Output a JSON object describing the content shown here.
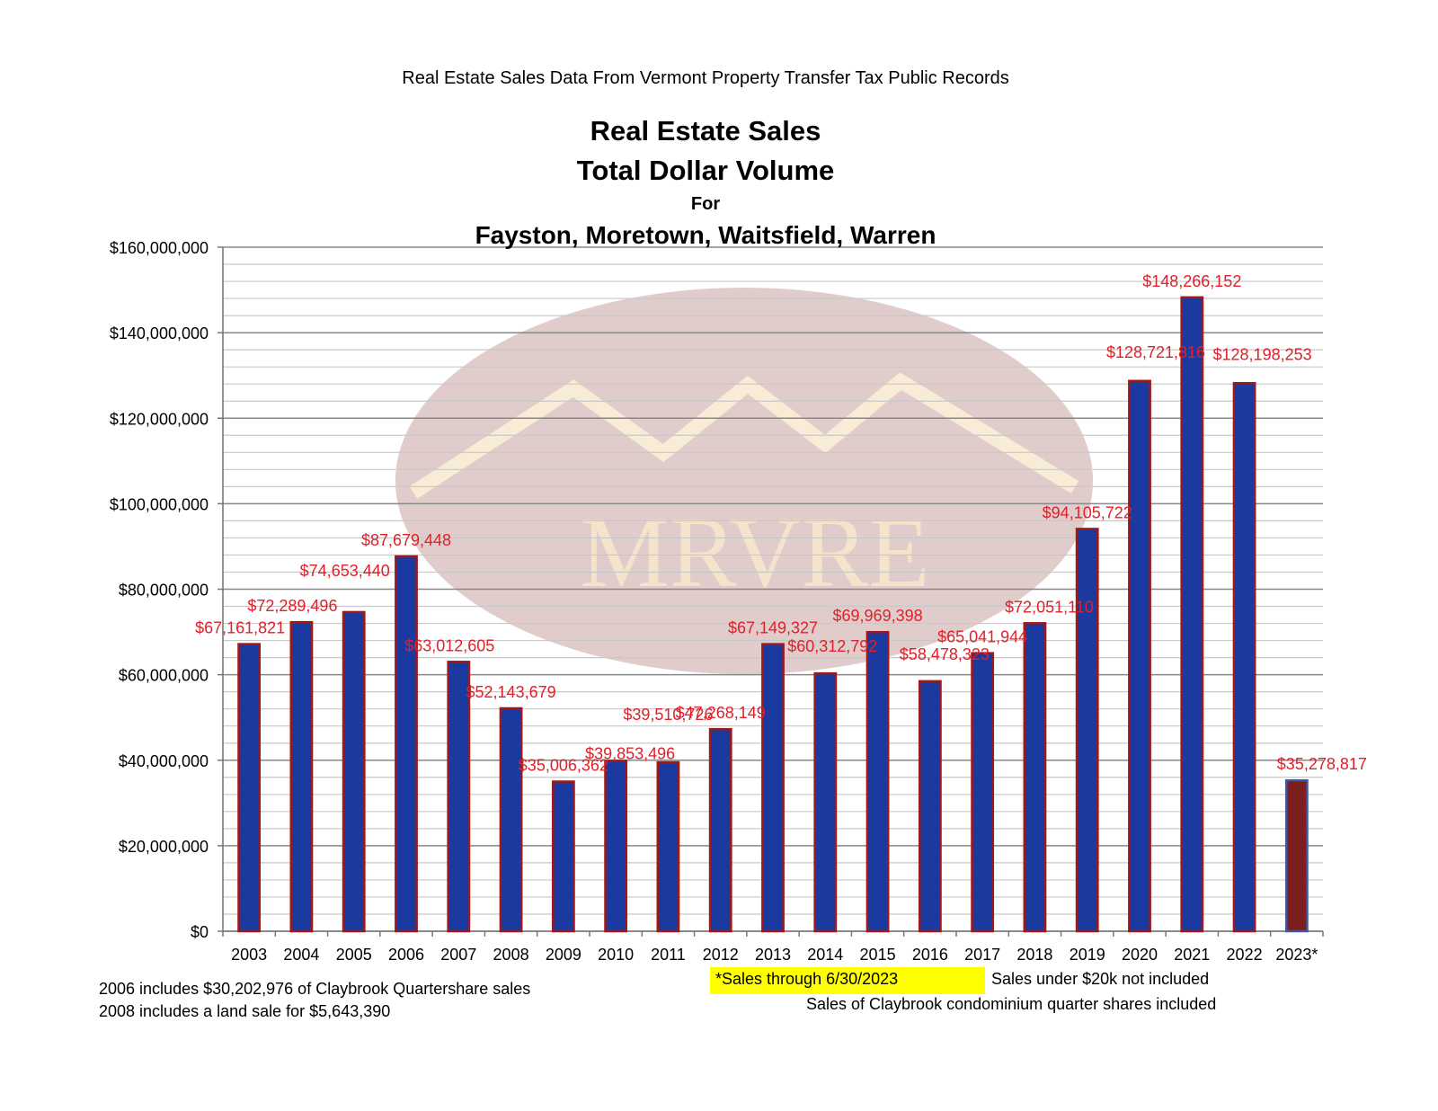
{
  "header": {
    "source_line": "Real Estate Sales Data From Vermont Property Transfer Tax Public Records",
    "title_line1": "Real Estate Sales",
    "title_line2": "Total Dollar Volume",
    "title_line3": "For",
    "title_line4": "Fayston, Moretown, Waitsfield, Warren"
  },
  "watermark": {
    "text": "MRVRE"
  },
  "colors": {
    "bar_fill": "#1a3aa0",
    "bar_border": "#a01818",
    "bar_partial_fill": "#7a1e1e",
    "bar_partial_border": "#3a5aa8",
    "label_color": "#e0202a",
    "grid_major": "#888888",
    "grid_minor": "#c8c8c8",
    "highlight": "#ffff00"
  },
  "chart_data": {
    "type": "bar",
    "categories": [
      "2003",
      "2004",
      "2005",
      "2006",
      "2007",
      "2008",
      "2009",
      "2010",
      "2011",
      "2012",
      "2013",
      "2014",
      "2015",
      "2016",
      "2017",
      "2018",
      "2019",
      "2020",
      "2021",
      "2022",
      "2023*"
    ],
    "values": [
      67161821,
      72289496,
      74653440,
      87679448,
      63012605,
      52143679,
      35006362,
      39853496,
      39510726,
      47268149,
      67149327,
      60312792,
      69969398,
      58478323,
      65041944,
      72051110,
      94105722,
      128721816,
      148266152,
      128198253,
      35278817
    ],
    "labels": [
      "$67,161,821",
      "$72,289,496",
      "$74,653,440",
      "$87,679,448",
      "$63,012,605",
      "$52,143,679",
      "$35,006,362",
      "$39,853,496",
      "$39,510,726",
      "$47,268,149",
      "$67,149,327",
      "$60,312,792",
      "$69,969,398",
      "$58,478,323",
      "$65,041,944",
      "$72,051,110",
      "$94,105,722",
      "$128,721,816",
      "$148,266,152",
      "$128,198,253",
      "$35,278,817"
    ],
    "y_ticks": [
      "$0",
      "$20,000,000",
      "$40,000,000",
      "$60,000,000",
      "$80,000,000",
      "$100,000,000",
      "$120,000,000",
      "$140,000,000",
      "$160,000,000"
    ],
    "ylim": [
      0,
      160000000
    ],
    "grid": true,
    "legend": "none",
    "partial_year_index": 20
  },
  "footnotes": {
    "left_line1": "2006 includes $30,202,976 of Claybrook Quartershare sales",
    "left_line2": "2008 includes a land sale for $5,643,390",
    "highlighted": "*Sales through 6/30/2023",
    "right_line1": "Sales under $20k not included",
    "right_line2": "Sales of Claybrook condominium quarter shares included"
  }
}
